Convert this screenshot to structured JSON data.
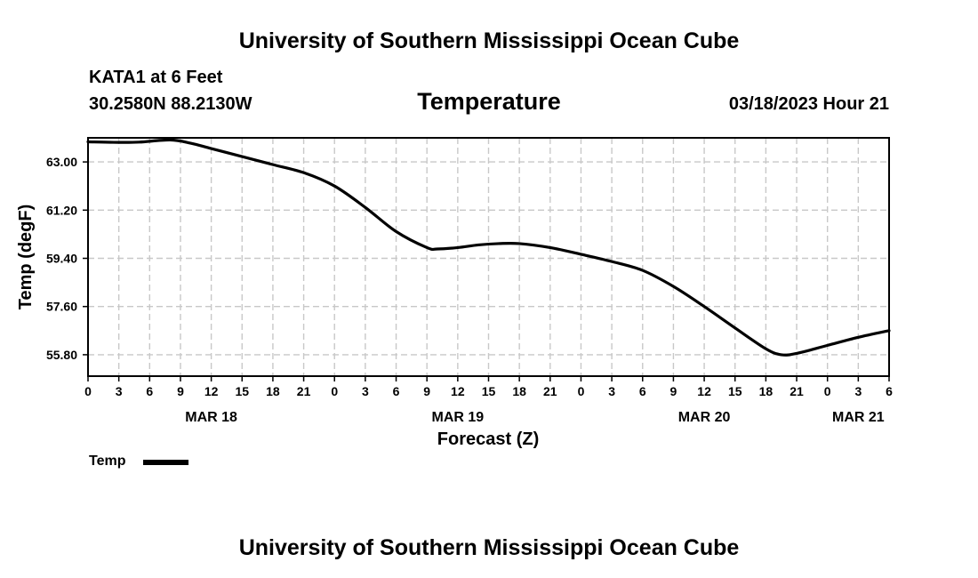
{
  "header": {
    "top_title": "University of Southern Mississippi Ocean Cube",
    "station": "KATA1 at 6 Feet",
    "location": "30.2580N  88.2130W",
    "datetime": "03/18/2023 Hour 21"
  },
  "footer": {
    "bottom_title": "University of Southern Mississippi Ocean Cube"
  },
  "legend": {
    "label": "Temp",
    "color": "#000000"
  },
  "colors": {
    "line": "#000000",
    "grid": "#c8c8c8",
    "background": "#ffffff"
  },
  "chart_data": {
    "type": "line",
    "title": "Temperature",
    "xlabel": "Forecast (Z)",
    "ylabel": "Temp (degF)",
    "x_unit": "hours from MAR 18 00Z",
    "xlim": [
      0,
      78
    ],
    "ylim": [
      55.0,
      63.9
    ],
    "grid": true,
    "legend_position": "bottom-left",
    "y_ticks": [
      55.8,
      57.6,
      59.4,
      61.2,
      63.0
    ],
    "y_tick_labels": [
      "55.80",
      "57.60",
      "59.40",
      "61.20",
      "63.00"
    ],
    "x_ticks": [
      0,
      3,
      6,
      9,
      12,
      15,
      18,
      21,
      24,
      27,
      30,
      33,
      36,
      39,
      42,
      45,
      48,
      51,
      54,
      57,
      60,
      63,
      66,
      69,
      72,
      75,
      78
    ],
    "x_tick_labels": [
      "0",
      "3",
      "6",
      "9",
      "12",
      "15",
      "18",
      "21",
      "0",
      "3",
      "6",
      "9",
      "12",
      "15",
      "18",
      "21",
      "0",
      "3",
      "6",
      "9",
      "12",
      "15",
      "18",
      "21",
      "0",
      "3",
      "6"
    ],
    "date_labels": [
      {
        "x": 12,
        "label": "MAR 18"
      },
      {
        "x": 36,
        "label": "MAR 19"
      },
      {
        "x": 60,
        "label": "MAR 20"
      },
      {
        "x": 75,
        "label": "MAR 21"
      }
    ],
    "series": [
      {
        "name": "Temp",
        "x": [
          0,
          3,
          5,
          8,
          10,
          12,
          15,
          18,
          21,
          24,
          27,
          30,
          33,
          34,
          36,
          38,
          40,
          42,
          45,
          48,
          51,
          54,
          57,
          60,
          63,
          66,
          67.5,
          69,
          72,
          75,
          78
        ],
        "y": [
          63.75,
          63.73,
          63.74,
          63.82,
          63.7,
          63.5,
          63.2,
          62.9,
          62.6,
          62.1,
          61.3,
          60.4,
          59.8,
          59.75,
          59.8,
          59.9,
          59.95,
          59.95,
          59.8,
          59.55,
          59.28,
          58.95,
          58.35,
          57.6,
          56.8,
          56.02,
          55.8,
          55.85,
          56.15,
          56.45,
          56.7
        ]
      }
    ]
  }
}
